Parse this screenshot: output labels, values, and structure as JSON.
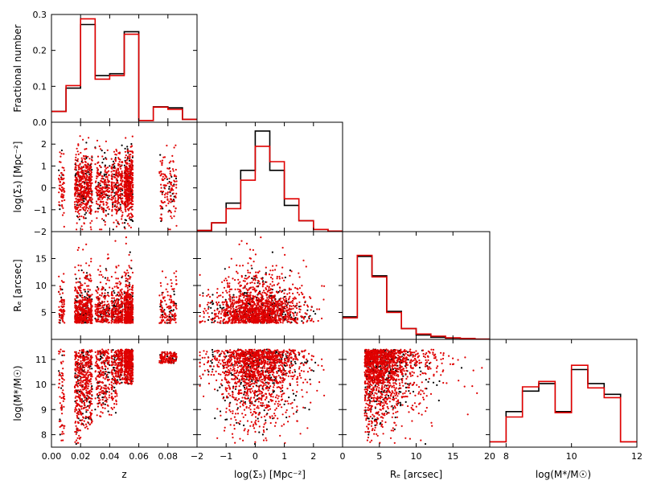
{
  "chart_data": {
    "type": "corner-plot",
    "series": [
      {
        "name": "sample-black",
        "color": "#000000"
      },
      {
        "name": "sample-red",
        "color": "#e00000"
      }
    ],
    "variables": [
      {
        "key": "z",
        "label": "z",
        "range": [
          0.0,
          0.1
        ],
        "ticks": [
          0.0,
          0.02,
          0.04,
          0.06,
          0.08
        ],
        "tick_labels": [
          "0.00",
          "0.02",
          "0.04",
          "0.06",
          "0.08"
        ]
      },
      {
        "key": "sigma5",
        "label": "log(Σ₅) [Mpc⁻²]",
        "range": [
          -2,
          3
        ],
        "ticks": [
          -2,
          -1,
          0,
          1,
          2
        ],
        "tick_labels": [
          "−2",
          "−1",
          "0",
          "1",
          "2"
        ]
      },
      {
        "key": "re",
        "label": "Rₑ [arcsec]",
        "range": [
          0,
          20
        ],
        "ticks": [
          0,
          5,
          10,
          15,
          20
        ],
        "tick_labels": [
          "0",
          "5",
          "10",
          "15",
          "20"
        ]
      },
      {
        "key": "mass",
        "label": "log(M*/M☉)",
        "range": [
          7.5,
          12
        ],
        "ticks": [
          8,
          10,
          12
        ],
        "tick_labels": [
          "8",
          "10",
          "12"
        ]
      }
    ],
    "row_axes": [
      {
        "row": 0,
        "label": "Fractional number",
        "range": [
          0,
          0.3
        ],
        "ticks": [
          0.0,
          0.1,
          0.2,
          0.3
        ],
        "tick_labels": [
          "0.0",
          "0.1",
          "0.2",
          "0.3"
        ]
      },
      {
        "row": 1,
        "label": "log(Σ₅) [Mpc⁻²]",
        "range": [
          -2,
          3
        ],
        "ticks": [
          -2,
          -1,
          0,
          1,
          2
        ],
        "tick_labels": [
          "−2",
          "−1",
          "0",
          "1",
          "2"
        ]
      },
      {
        "row": 2,
        "label": "Rₑ [arcsec]",
        "range": [
          0,
          20
        ],
        "ticks": [
          5,
          10,
          15
        ],
        "tick_labels": [
          "5",
          "10",
          "15"
        ]
      },
      {
        "row": 3,
        "label": "log(M*/M☉)",
        "range": [
          7.5,
          11.8
        ],
        "ticks": [
          8,
          9,
          10,
          11
        ],
        "tick_labels": [
          "8",
          "9",
          "10",
          "11"
        ]
      }
    ],
    "histograms": {
      "z": {
        "edges": [
          0.0,
          0.01,
          0.02,
          0.03,
          0.04,
          0.05,
          0.06,
          0.07,
          0.08,
          0.09,
          0.1
        ],
        "black": [
          0.03,
          0.095,
          0.272,
          0.13,
          0.135,
          0.252,
          0.005,
          0.043,
          0.04,
          0.008
        ],
        "red": [
          0.03,
          0.102,
          0.288,
          0.12,
          0.13,
          0.245,
          0.005,
          0.042,
          0.036,
          0.008
        ]
      },
      "sigma5": {
        "edges": [
          -2.0,
          -1.5,
          -1.0,
          -0.5,
          0.0,
          0.5,
          1.0,
          1.5,
          2.0,
          2.5,
          3.0
        ],
        "black": [
          0.01,
          0.08,
          0.26,
          0.56,
          0.92,
          0.56,
          0.24,
          0.1,
          0.02,
          0.005
        ],
        "red": [
          0.01,
          0.08,
          0.21,
          0.47,
          0.78,
          0.64,
          0.3,
          0.1,
          0.02,
          0.005
        ]
      },
      "re": {
        "edges": [
          0,
          2,
          4,
          6,
          8,
          10,
          12,
          14,
          16,
          18,
          20
        ],
        "black": [
          0.21,
          0.77,
          0.59,
          0.26,
          0.1,
          0.04,
          0.02,
          0.012,
          0.008,
          0.002
        ],
        "red": [
          0.2,
          0.78,
          0.58,
          0.25,
          0.1,
          0.05,
          0.03,
          0.015,
          0.008,
          0.002
        ]
      },
      "mass": {
        "edges": [
          7.5,
          8.0,
          8.5,
          9.0,
          9.5,
          10.0,
          10.5,
          11.0,
          11.5,
          12.0
        ],
        "black": [
          0.05,
          0.33,
          0.52,
          0.59,
          0.33,
          0.72,
          0.59,
          0.49,
          0.05
        ],
        "red": [
          0.05,
          0.28,
          0.56,
          0.61,
          0.32,
          0.76,
          0.55,
          0.46,
          0.05
        ]
      }
    },
    "scatter_note": "Each off-diagonal panel is a scatter of all galaxies for the two variables; red points overlay black points."
  }
}
